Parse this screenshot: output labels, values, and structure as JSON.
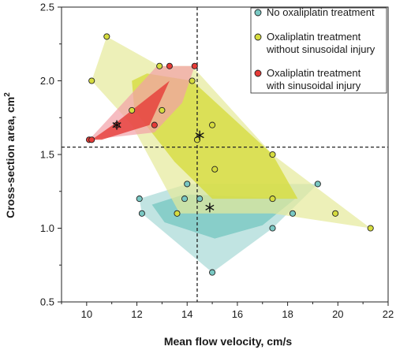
{
  "chart_data": {
    "type": "scatter",
    "xlabel": "Mean flow velocity, cm/s",
    "ylabel": "Cross-section area, cm",
    "ylabel_superscript": "2",
    "xlim": [
      9,
      22
    ],
    "ylim": [
      0.5,
      2.5
    ],
    "xticks": [
      "10",
      "12",
      "14",
      "16",
      "18",
      "20",
      "22"
    ],
    "yticks": [
      "0.5",
      "1.0",
      "1.5",
      "2.0",
      "2.5"
    ],
    "reference_lines": {
      "x": 14.4,
      "y": 1.55
    },
    "legend_position": "top-right",
    "series": [
      {
        "name": "No oxaliplatin treatment",
        "color": "#79c8c3",
        "fill": "#a7d8d5",
        "points": [
          [
            12.1,
            1.2
          ],
          [
            12.2,
            1.1
          ],
          [
            13.9,
            1.2
          ],
          [
            14.0,
            1.3
          ],
          [
            14.5,
            1.2
          ],
          [
            15.0,
            0.7
          ],
          [
            17.4,
            1.0
          ],
          [
            18.2,
            1.1
          ],
          [
            19.2,
            1.3
          ]
        ],
        "mean": [
          14.9,
          1.14
        ],
        "outer_hull": [
          [
            12.1,
            1.2
          ],
          [
            14.0,
            1.3
          ],
          [
            19.2,
            1.3
          ],
          [
            17.4,
            1.0
          ],
          [
            15.0,
            0.7
          ],
          [
            12.2,
            1.1
          ]
        ],
        "inner_hull": [
          [
            12.6,
            1.16
          ],
          [
            13.9,
            1.23
          ],
          [
            18.3,
            1.2
          ],
          [
            17.0,
            1.02
          ],
          [
            15.1,
            0.93
          ],
          [
            13.1,
            1.04
          ]
        ]
      },
      {
        "name": "Oxaliplatin treatment\nwithout sinusoidal injury",
        "color": "#d6dc3e",
        "fill": "#e5e99a",
        "points": [
          [
            10.2,
            2.0
          ],
          [
            10.8,
            2.3
          ],
          [
            11.8,
            1.8
          ],
          [
            13.0,
            1.8
          ],
          [
            12.9,
            2.1
          ],
          [
            14.2,
            2.0
          ],
          [
            14.4,
            1.6
          ],
          [
            15.0,
            1.7
          ],
          [
            15.1,
            1.4
          ],
          [
            13.6,
            1.1
          ],
          [
            17.4,
            1.2
          ],
          [
            17.4,
            1.5
          ],
          [
            19.9,
            1.1
          ],
          [
            21.3,
            1.0
          ]
        ],
        "mean": [
          14.5,
          1.63
        ],
        "outer_hull": [
          [
            10.2,
            2.0
          ],
          [
            10.8,
            2.3
          ],
          [
            12.9,
            2.1
          ],
          [
            14.2,
            2.1
          ],
          [
            17.4,
            1.5
          ],
          [
            21.3,
            1.0
          ],
          [
            17.4,
            1.1
          ],
          [
            13.7,
            1.1
          ],
          [
            11.8,
            1.7
          ]
        ],
        "inner_hull": [
          [
            11.8,
            2.0
          ],
          [
            12.4,
            2.05
          ],
          [
            14.2,
            2.0
          ],
          [
            17.4,
            1.5
          ],
          [
            18.4,
            1.2
          ],
          [
            15.0,
            1.2
          ],
          [
            13.5,
            1.45
          ],
          [
            11.9,
            1.8
          ]
        ]
      },
      {
        "name": "Oxaliplatin treatment\nwith sinusoidal injury",
        "color": "#e63b37",
        "fill": "#f2a0a6",
        "points": [
          [
            10.1,
            1.6
          ],
          [
            10.2,
            1.6
          ],
          [
            11.2,
            1.7
          ],
          [
            12.7,
            1.7
          ],
          [
            13.3,
            2.1
          ],
          [
            14.3,
            2.1
          ]
        ],
        "mean": [
          11.2,
          1.7
        ],
        "outer_hull": [
          [
            10.1,
            1.6
          ],
          [
            12.8,
            2.1
          ],
          [
            14.3,
            2.1
          ],
          [
            13.8,
            1.85
          ],
          [
            12.7,
            1.65
          ]
        ],
        "inner_hull": [
          [
            10.2,
            1.6
          ],
          [
            11.2,
            1.72
          ],
          [
            13.3,
            2.0
          ],
          [
            12.5,
            1.7
          ],
          [
            10.6,
            1.6
          ]
        ]
      }
    ]
  }
}
